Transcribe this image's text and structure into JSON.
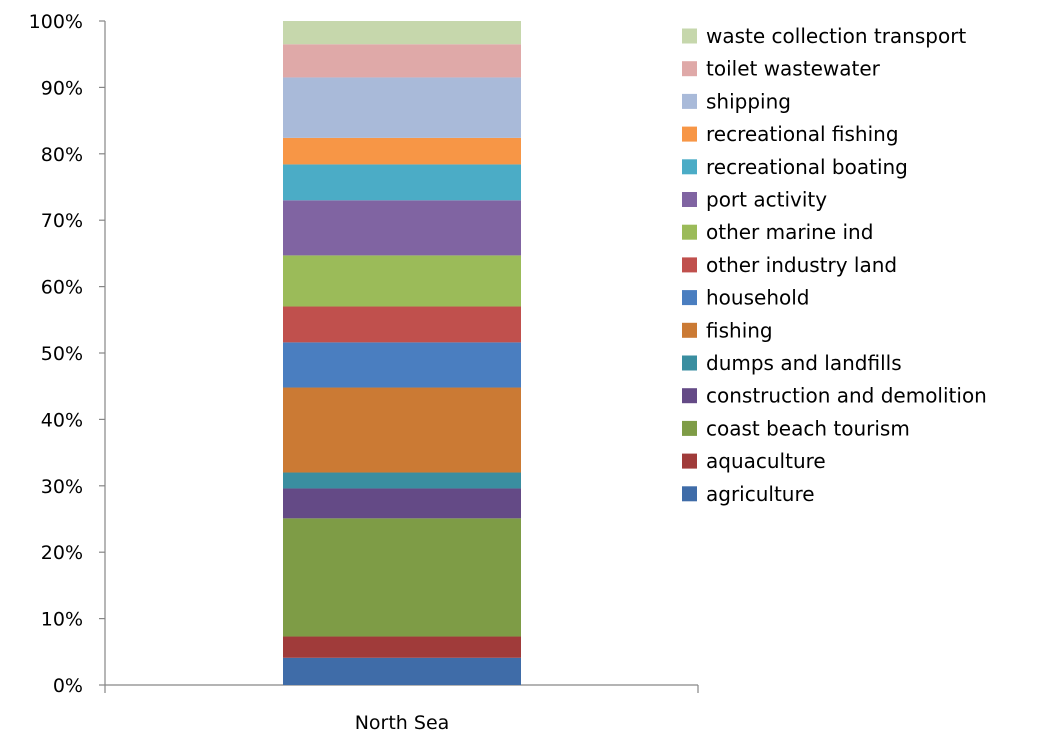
{
  "chart_data": {
    "type": "bar",
    "stacked": true,
    "percent_stacked": true,
    "categories": [
      "North Sea"
    ],
    "title": "",
    "xlabel": "",
    "ylabel": "",
    "ylim": [
      0,
      100
    ],
    "y_ticks": [
      "0%",
      "10%",
      "20%",
      "30%",
      "40%",
      "50%",
      "60%",
      "70%",
      "80%",
      "90%",
      "100%"
    ],
    "grid": false,
    "legend_position": "right",
    "series": [
      {
        "name": "agriculture",
        "color": "#3F6CA8",
        "values": [
          4.1
        ]
      },
      {
        "name": "aquaculture",
        "color": "#A03B3A",
        "values": [
          3.2
        ]
      },
      {
        "name": "coast beach tourism",
        "color": "#7E9C46",
        "values": [
          17.8
        ]
      },
      {
        "name": "construction and demolition",
        "color": "#644A86",
        "values": [
          4.5
        ]
      },
      {
        "name": "dumps and landfills",
        "color": "#3A8EA0",
        "values": [
          2.4
        ]
      },
      {
        "name": "fishing",
        "color": "#CB7A34",
        "values": [
          12.8
        ]
      },
      {
        "name": "household",
        "color": "#4A7EC0",
        "values": [
          6.8
        ]
      },
      {
        "name": "other industry land",
        "color": "#C0504D",
        "values": [
          5.4
        ]
      },
      {
        "name": "other marine ind",
        "color": "#9BBB59",
        "values": [
          7.7
        ]
      },
      {
        "name": "port activity",
        "color": "#8064A2",
        "values": [
          8.3
        ]
      },
      {
        "name": "recreational boating",
        "color": "#4BACC6",
        "values": [
          5.4
        ]
      },
      {
        "name": "recreational fishing",
        "color": "#F79646",
        "values": [
          4.0
        ]
      },
      {
        "name": "shipping",
        "color": "#A9BAD9",
        "values": [
          9.1
        ]
      },
      {
        "name": "toilet wastewater",
        "color": "#DFA9A8",
        "values": [
          5.0
        ]
      },
      {
        "name": "waste collection transport",
        "color": "#C6D7AC",
        "values": [
          3.5
        ]
      }
    ]
  }
}
